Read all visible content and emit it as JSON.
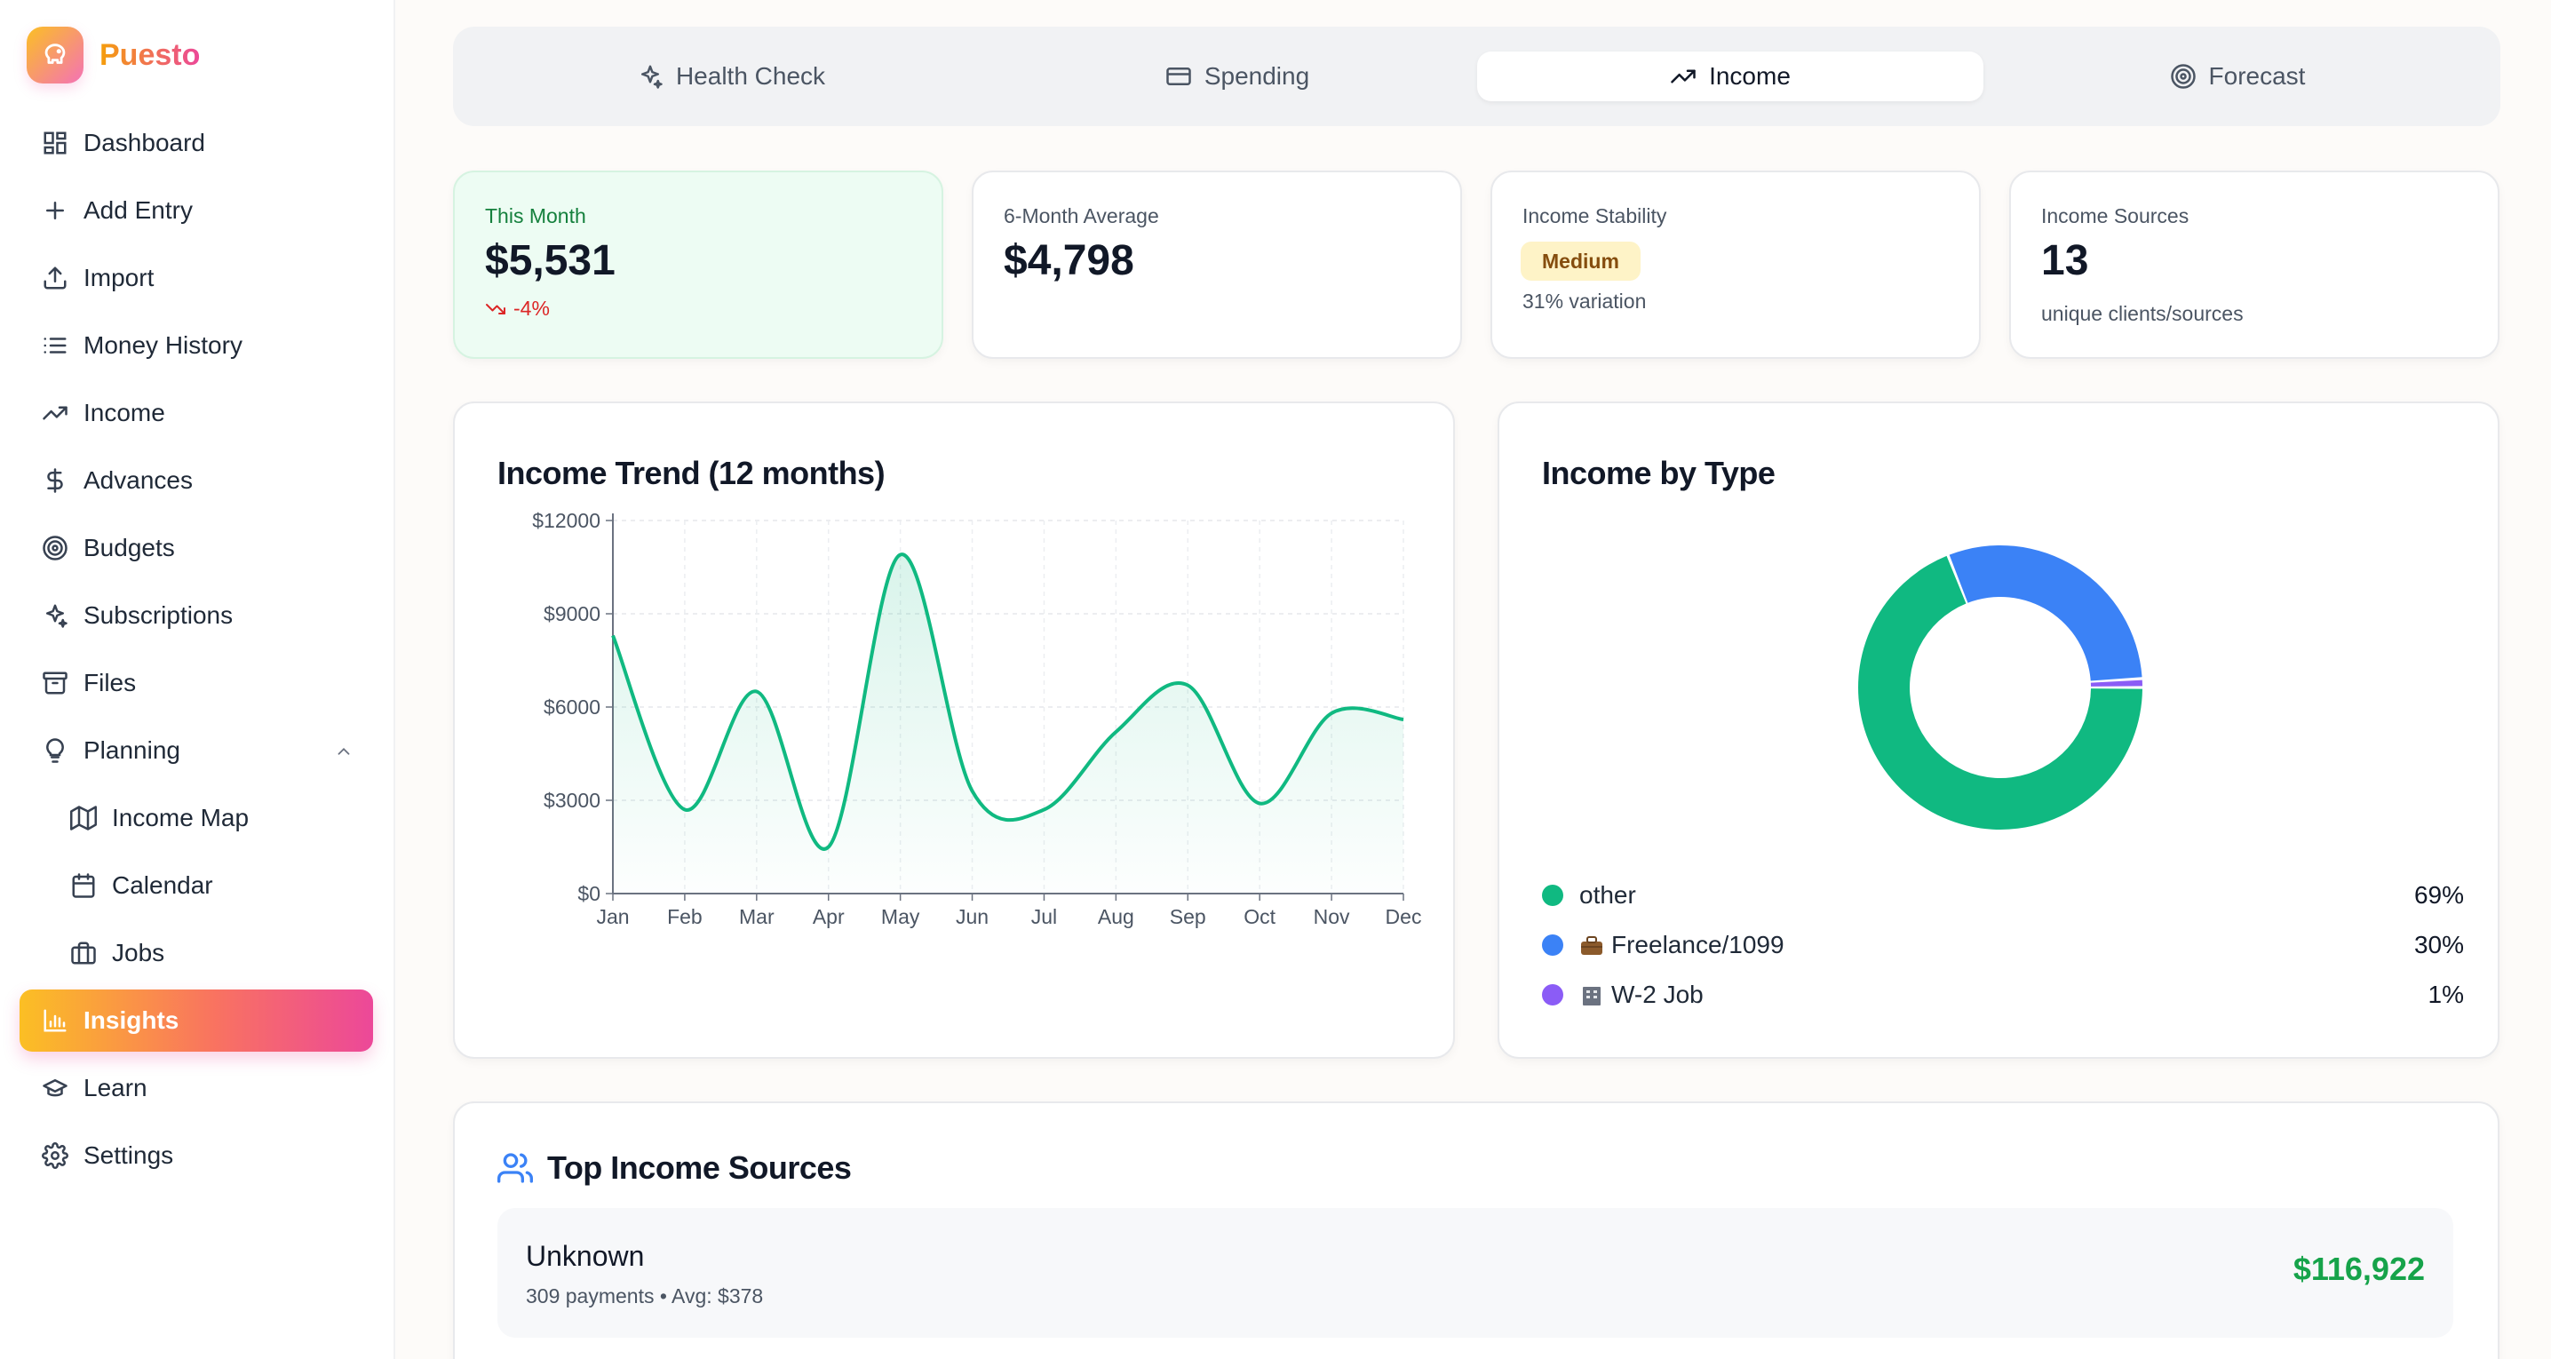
{
  "app": {
    "name": "Puesto"
  },
  "sidebar": {
    "items": [
      {
        "label": "Dashboard",
        "icon": "dashboard-icon"
      },
      {
        "label": "Add Entry",
        "icon": "plus-icon"
      },
      {
        "label": "Import",
        "icon": "upload-icon"
      },
      {
        "label": "Money History",
        "icon": "list-icon"
      },
      {
        "label": "Income",
        "icon": "trending-up-icon"
      },
      {
        "label": "Advances",
        "icon": "dollar-icon"
      },
      {
        "label": "Budgets",
        "icon": "target-icon"
      },
      {
        "label": "Subscriptions",
        "icon": "sparkles-icon"
      },
      {
        "label": "Files",
        "icon": "archive-icon"
      },
      {
        "label": "Planning",
        "icon": "lightbulb-icon",
        "expanded": true
      },
      {
        "label": "Income Map",
        "icon": "map-icon"
      },
      {
        "label": "Calendar",
        "icon": "calendar-icon"
      },
      {
        "label": "Jobs",
        "icon": "briefcase-icon"
      },
      {
        "label": "Insights",
        "icon": "bar-chart-icon",
        "active": true
      },
      {
        "label": "Learn",
        "icon": "graduation-cap-icon"
      },
      {
        "label": "Settings",
        "icon": "gear-icon"
      }
    ]
  },
  "tabs": [
    {
      "label": "Health Check",
      "icon": "sparkles-icon"
    },
    {
      "label": "Spending",
      "icon": "credit-card-icon"
    },
    {
      "label": "Income",
      "icon": "trending-up-icon",
      "active": true
    },
    {
      "label": "Forecast",
      "icon": "target-icon"
    }
  ],
  "stats": {
    "this_month": {
      "label": "This Month",
      "value": "$5,531",
      "change": "-4%"
    },
    "six_month_avg": {
      "label": "6-Month Average",
      "value": "$4,798"
    },
    "stability": {
      "label": "Income Stability",
      "badge": "Medium",
      "sub": "31% variation"
    },
    "sources": {
      "label": "Income Sources",
      "value": "13",
      "sub": "unique clients/sources"
    }
  },
  "trend": {
    "title": "Income Trend (12 months)"
  },
  "by_type": {
    "title": "Income by Type",
    "legend": [
      {
        "label": "other",
        "pct": "69%",
        "color": "#10b981",
        "emoji": ""
      },
      {
        "label": "Freelance/1099",
        "pct": "30%",
        "color": "#3b82f6",
        "emoji": "briefcase"
      },
      {
        "label": "W-2 Job",
        "pct": "1%",
        "color": "#8b5cf6",
        "emoji": "office-building"
      }
    ]
  },
  "top_sources": {
    "title": "Top Income Sources",
    "items": [
      {
        "name": "Unknown",
        "meta": "309 payments • Avg: $378",
        "total": "$116,922"
      }
    ]
  },
  "colors": {
    "accent_green": "#10b981",
    "accent_blue": "#3b82f6",
    "accent_purple": "#8b5cf6",
    "negative": "#dc2626",
    "positive": "#16a34a"
  },
  "chart_data": [
    {
      "type": "area",
      "title": "Income Trend (12 months)",
      "categories": [
        "Jan",
        "Feb",
        "Mar",
        "Apr",
        "May",
        "Jun",
        "Jul",
        "Aug",
        "Sep",
        "Oct",
        "Nov",
        "Dec"
      ],
      "values": [
        8300,
        2700,
        6500,
        1500,
        10900,
        3300,
        2700,
        5200,
        6700,
        2900,
        5800,
        5600
      ],
      "y_ticks": [
        "$0",
        "$3000",
        "$6000",
        "$9000",
        "$12000"
      ],
      "ylim": [
        0,
        12000
      ],
      "grid": true,
      "color": "#10b981"
    },
    {
      "type": "pie",
      "title": "Income by Type",
      "donut": true,
      "slices": [
        {
          "label": "other",
          "value": 69,
          "color": "#10b981"
        },
        {
          "label": "Freelance/1099",
          "value": 30,
          "color": "#3b82f6"
        },
        {
          "label": "W-2 Job",
          "value": 1,
          "color": "#8b5cf6"
        }
      ]
    }
  ]
}
